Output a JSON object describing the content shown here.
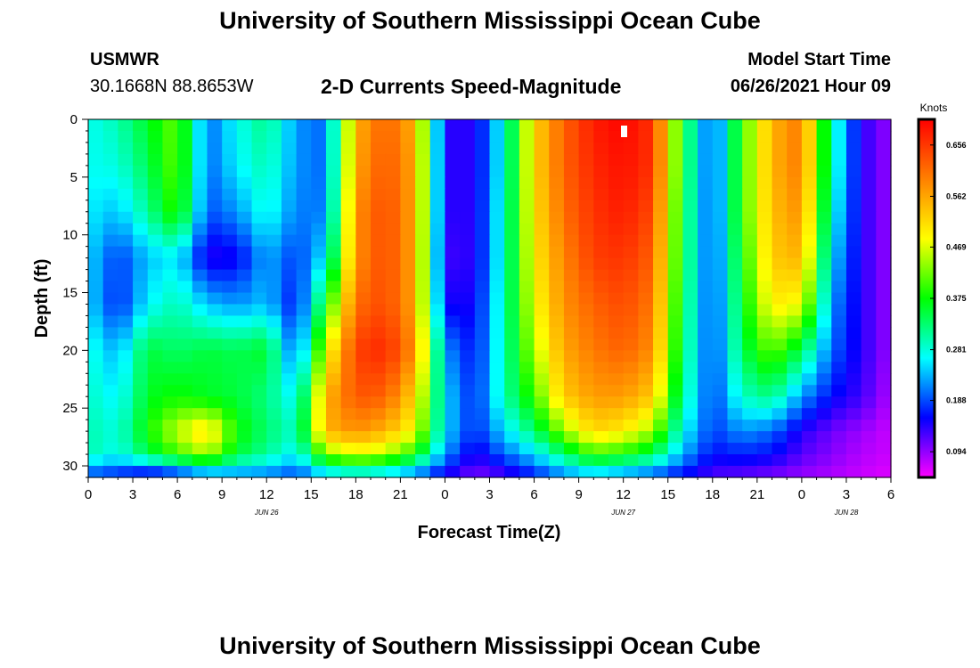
{
  "page": {
    "title_top": "University of Southern Mississippi Ocean Cube",
    "title_bottom": "University of Southern Mississippi Ocean Cube",
    "station_name": "USMWR",
    "station_coords": "30.1668N  88.8653W",
    "subtitle": "2-D Currents Speed-Magnitude",
    "model_start_label": "Model Start Time",
    "model_start_value": "06/26/2021 Hour 09"
  },
  "chart_data": {
    "type": "heatmap",
    "title": "2-D Currents Speed-Magnitude",
    "xlabel": "Forecast Time(Z)",
    "ylabel": "Depth (ft)",
    "colorbar_label": "Knots",
    "x_ticks": [
      "0",
      "3",
      "6",
      "9",
      "12",
      "15",
      "18",
      "21",
      "0",
      "3",
      "6",
      "9",
      "12",
      "15",
      "18",
      "21",
      "0",
      "3",
      "6"
    ],
    "x_day_labels": [
      {
        "label": "JUN 26",
        "hour": 12
      },
      {
        "label": "JUN 27",
        "hour": 36
      },
      {
        "label": "JUN 28",
        "hour": 51
      }
    ],
    "xlim_hours": [
      0,
      54
    ],
    "y_ticks": [
      0,
      5,
      10,
      15,
      20,
      25,
      30
    ],
    "ylim_ft": [
      0,
      31
    ],
    "y_inverted": true,
    "colorbar_ticks": [
      0.094,
      0.188,
      0.281,
      0.375,
      0.469,
      0.562,
      0.656
    ],
    "colorbar_range": [
      0.047,
      0.703
    ],
    "colorbar_colors": [
      "#ff00ff",
      "#8000ff",
      "#0000ff",
      "#0080ff",
      "#00ffff",
      "#00ff80",
      "#00ff00",
      "#80ff00",
      "#ffff00",
      "#ffc000",
      "#ff8000",
      "#ff4000",
      "#ff0000"
    ],
    "grid": false,
    "approx_speed_field_knots": {
      "description": "Approximate current speed (knots) by forecast hour (columns) and depth (rows)",
      "hours": [
        0,
        2,
        4,
        6,
        8,
        10,
        12,
        14,
        16,
        18,
        20,
        22,
        24,
        26,
        28,
        30,
        32,
        34,
        36,
        38,
        40,
        42,
        44,
        46,
        48,
        50,
        52,
        54
      ],
      "depths_ft": [
        0,
        4,
        8,
        12,
        16,
        20,
        24,
        27,
        29,
        31
      ],
      "values": [
        [
          0.27,
          0.3,
          0.36,
          0.42,
          0.2,
          0.27,
          0.32,
          0.22,
          0.2,
          0.55,
          0.62,
          0.55,
          0.14,
          0.14,
          0.28,
          0.52,
          0.62,
          0.68,
          0.7,
          0.66,
          0.36,
          0.18,
          0.4,
          0.55,
          0.6,
          0.3,
          0.14,
          0.09
        ],
        [
          0.27,
          0.28,
          0.34,
          0.42,
          0.2,
          0.26,
          0.3,
          0.22,
          0.2,
          0.56,
          0.63,
          0.56,
          0.14,
          0.14,
          0.28,
          0.52,
          0.62,
          0.67,
          0.69,
          0.66,
          0.36,
          0.18,
          0.4,
          0.55,
          0.6,
          0.3,
          0.14,
          0.09
        ],
        [
          0.26,
          0.24,
          0.31,
          0.4,
          0.19,
          0.22,
          0.28,
          0.21,
          0.21,
          0.58,
          0.64,
          0.56,
          0.14,
          0.14,
          0.29,
          0.51,
          0.61,
          0.66,
          0.68,
          0.64,
          0.35,
          0.18,
          0.4,
          0.54,
          0.58,
          0.28,
          0.14,
          0.09
        ],
        [
          0.25,
          0.18,
          0.24,
          0.26,
          0.14,
          0.15,
          0.23,
          0.18,
          0.26,
          0.58,
          0.64,
          0.56,
          0.13,
          0.14,
          0.29,
          0.5,
          0.59,
          0.65,
          0.66,
          0.62,
          0.35,
          0.18,
          0.38,
          0.53,
          0.55,
          0.25,
          0.14,
          0.09
        ],
        [
          0.25,
          0.17,
          0.26,
          0.3,
          0.24,
          0.22,
          0.24,
          0.16,
          0.37,
          0.61,
          0.64,
          0.56,
          0.15,
          0.15,
          0.3,
          0.48,
          0.58,
          0.62,
          0.64,
          0.6,
          0.34,
          0.18,
          0.36,
          0.5,
          0.48,
          0.22,
          0.14,
          0.09
        ],
        [
          0.28,
          0.23,
          0.35,
          0.33,
          0.35,
          0.34,
          0.36,
          0.19,
          0.47,
          0.65,
          0.67,
          0.58,
          0.22,
          0.16,
          0.3,
          0.45,
          0.56,
          0.6,
          0.62,
          0.58,
          0.33,
          0.18,
          0.34,
          0.42,
          0.34,
          0.2,
          0.14,
          0.09
        ],
        [
          0.29,
          0.26,
          0.36,
          0.38,
          0.36,
          0.35,
          0.32,
          0.26,
          0.55,
          0.63,
          0.62,
          0.52,
          0.25,
          0.17,
          0.3,
          0.4,
          0.53,
          0.57,
          0.57,
          0.53,
          0.31,
          0.18,
          0.29,
          0.32,
          0.22,
          0.16,
          0.13,
          0.08
        ],
        [
          0.3,
          0.28,
          0.38,
          0.46,
          0.52,
          0.38,
          0.33,
          0.29,
          0.55,
          0.58,
          0.55,
          0.48,
          0.25,
          0.17,
          0.25,
          0.33,
          0.44,
          0.52,
          0.5,
          0.44,
          0.27,
          0.18,
          0.22,
          0.2,
          0.14,
          0.11,
          0.09,
          0.07
        ],
        [
          0.3,
          0.27,
          0.34,
          0.4,
          0.45,
          0.35,
          0.31,
          0.26,
          0.43,
          0.47,
          0.45,
          0.38,
          0.22,
          0.14,
          0.2,
          0.25,
          0.33,
          0.4,
          0.38,
          0.34,
          0.23,
          0.16,
          0.17,
          0.16,
          0.12,
          0.1,
          0.08,
          0.07
        ],
        [
          0.18,
          0.16,
          0.12,
          0.14,
          0.18,
          0.2,
          0.2,
          0.18,
          0.22,
          0.24,
          0.22,
          0.19,
          0.14,
          0.1,
          0.12,
          0.16,
          0.2,
          0.22,
          0.2,
          0.18,
          0.15,
          0.12,
          0.11,
          0.1,
          0.09,
          0.08,
          0.07,
          0.06
        ]
      ]
    }
  }
}
